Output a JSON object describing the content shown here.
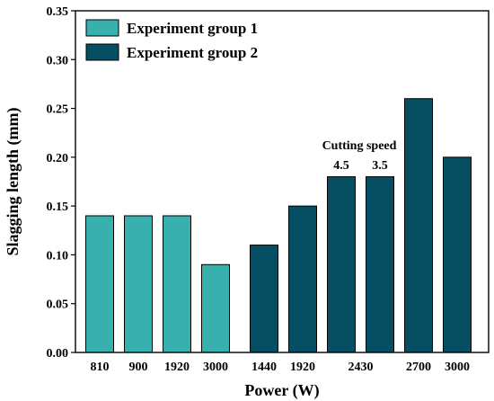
{
  "chart_data": {
    "type": "bar",
    "xlabel": "Power (W)",
    "ylabel": "Slagging length (mm)",
    "ylim": [
      0,
      0.35
    ],
    "yticks": [
      "0.00",
      "0.05",
      "0.10",
      "0.15",
      "0.20",
      "0.25",
      "0.30",
      "0.35"
    ],
    "legend_position": "top-left",
    "bars": [
      {
        "category": "810",
        "value": 0.14,
        "series": "Experiment group 1",
        "tick": "810"
      },
      {
        "category": "900",
        "value": 0.14,
        "series": "Experiment group 1",
        "tick": "900"
      },
      {
        "category": "1920",
        "value": 0.14,
        "series": "Experiment group 1",
        "tick": "1920"
      },
      {
        "category": "3000",
        "value": 0.09,
        "series": "Experiment group 1",
        "tick": "3000"
      },
      {
        "category": "1440",
        "value": 0.11,
        "series": "Experiment group 2",
        "tick": "1440"
      },
      {
        "category": "1920",
        "value": 0.15,
        "series": "Experiment group 2",
        "tick": "1920"
      },
      {
        "category": "2430",
        "value": 0.18,
        "series": "Experiment group 2",
        "tick": ""
      },
      {
        "category": "2430",
        "value": 0.18,
        "series": "Experiment group 2",
        "tick": ""
      },
      {
        "category": "2700",
        "value": 0.26,
        "series": "Experiment group 2",
        "tick": "2700"
      },
      {
        "category": "3000",
        "value": 0.2,
        "series": "Experiment group 2",
        "tick": "3000"
      }
    ],
    "shared_tick_label": "2430",
    "series": [
      {
        "name": "Experiment group 1",
        "color": "#38b0ae"
      },
      {
        "name": "Experiment group 2",
        "color": "#064f63"
      }
    ],
    "annotations": {
      "title": "Cutting speed",
      "left_value": "4.5",
      "right_value": "3.5"
    }
  }
}
